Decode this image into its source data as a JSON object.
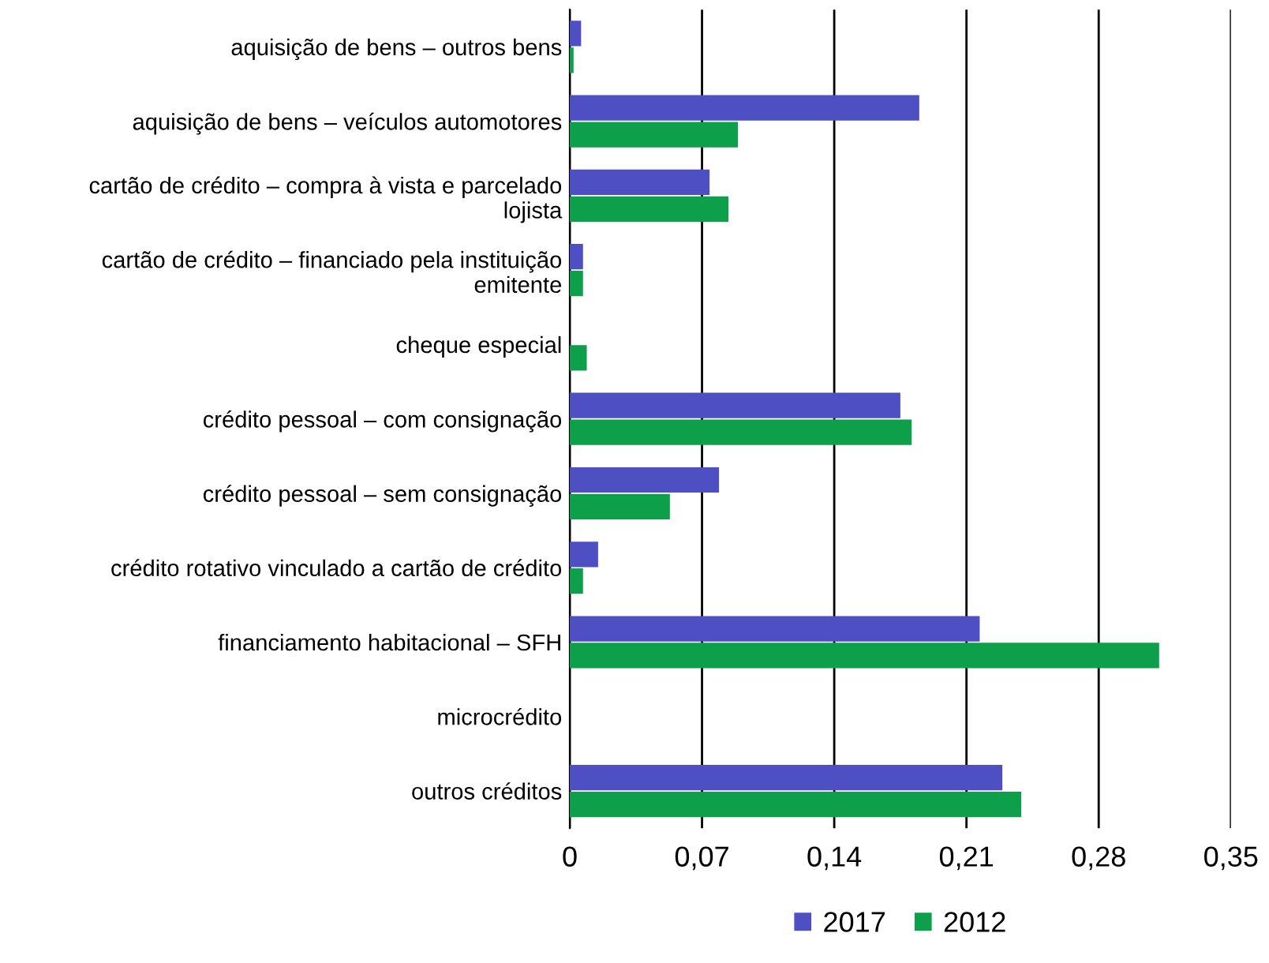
{
  "chart_data": {
    "type": "bar",
    "orientation": "horizontal",
    "categories": [
      "aquisição de bens – outros bens",
      "aquisição de bens – veículos automotores",
      "cartão de crédito – compra à vista e parcelado\nlojista",
      "cartão de crédito – financiado pela instituição\nemitente",
      "cheque especial",
      "crédito pessoal – com consignação",
      "crédito pessoal – sem consignação",
      "crédito rotativo vinculado a cartão de crédito",
      "financiamento habitacional – SFH",
      "microcrédito",
      "outros créditos"
    ],
    "series": [
      {
        "name": "2017",
        "color": "#4f4fc4",
        "values": [
          0.006,
          0.185,
          0.074,
          0.007,
          0,
          0.175,
          0.079,
          0.015,
          0.217,
          0,
          0.229
        ]
      },
      {
        "name": "2012",
        "color": "#0e9f4a",
        "values": [
          0.002,
          0.089,
          0.084,
          0.007,
          0.009,
          0.181,
          0.053,
          0.007,
          0.312,
          0,
          0.239
        ]
      }
    ],
    "xlim": [
      0,
      0.35
    ],
    "xticks": [
      0,
      {
        "value": 0.07,
        "label": "0,07"
      },
      {
        "value": 0.14,
        "label": "0,14"
      },
      {
        "value": 0.21,
        "label": "0,21"
      },
      {
        "value": 0.28,
        "label": "0,28"
      },
      {
        "value": 0.35,
        "label": "0,35"
      }
    ],
    "grid": "x",
    "legend": "bottom"
  }
}
